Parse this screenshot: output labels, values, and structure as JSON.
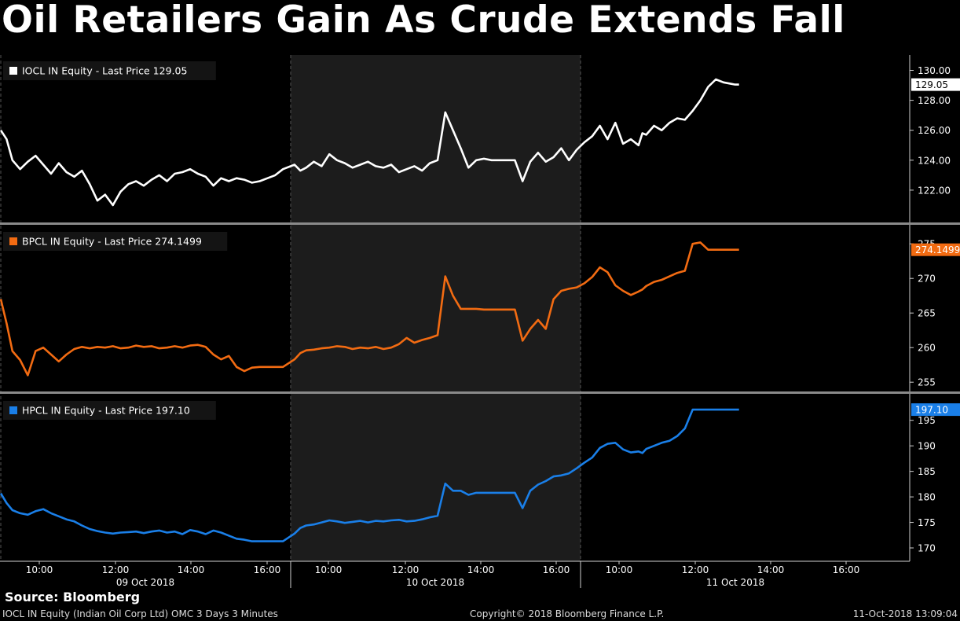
{
  "title": "Oil Retailers Gain As Crude Extends Fall",
  "source": "Source: Bloomberg",
  "footer": {
    "left": "IOCL IN Equity (Indian Oil Corp Ltd) OMC 3 Days 3 Minutes",
    "center": "Copyright© 2018 Bloomberg Finance L.P.",
    "right": "11-Oct-2018 13:09:04"
  },
  "colors": {
    "background": "#000000",
    "shaded_day": "#1c1c1c",
    "panel_divider": "#8a8a8a",
    "iocl": "#ffffff",
    "bpcl": "#f26b12",
    "hpcl": "#1a7fe8"
  },
  "chart_data": {
    "type": "line",
    "x_unit": "hours since 09 Oct 2018 09:00 on trading-session axis",
    "x_tick_labels": [
      "10:00",
      "12:00",
      "14:00",
      "16:00",
      "10:00",
      "12:00",
      "14:00",
      "16:00",
      "10:00",
      "12:00",
      "14:00",
      "16:00"
    ],
    "day_labels": [
      "09 Oct 2018",
      "10 Oct 2018",
      "11 Oct 2018"
    ],
    "panels": [
      {
        "name": "IOCL IN Equity",
        "legend": "IOCL IN Equity - Last Price 129.05",
        "last_price_label": "129.05",
        "color": "#ffffff",
        "ylim": [
          120,
          130.5
        ],
        "y_ticks": [
          "130.00",
          "128.00",
          "126.00",
          "124.00",
          "122.00"
        ],
        "x": [
          9.0,
          9.15,
          9.3,
          9.5,
          9.7,
          9.9,
          10.1,
          10.3,
          10.5,
          10.7,
          10.9,
          11.1,
          11.3,
          11.5,
          11.7,
          11.9,
          12.1,
          12.3,
          12.5,
          12.7,
          12.9,
          13.1,
          13.3,
          13.5,
          13.7,
          13.9,
          14.1,
          14.3,
          14.5,
          14.7,
          14.9,
          15.1,
          15.3,
          15.5,
          15.7,
          15.9,
          16.1,
          16.3,
          16.6,
          16.75,
          16.9,
          17.1,
          17.3,
          17.5,
          17.7,
          17.9,
          18.1,
          18.3,
          18.5,
          18.7,
          18.9,
          19.1,
          19.3,
          19.5,
          19.7,
          19.9,
          20.1,
          20.3,
          20.5,
          20.7,
          20.9,
          21.1,
          21.3,
          21.5,
          21.7,
          21.9,
          22.1,
          22.3,
          22.5,
          22.7,
          22.9,
          23.1,
          23.3,
          23.5,
          23.7,
          23.9,
          24.1,
          24.3,
          24.5,
          24.7,
          24.9,
          25.1,
          25.3,
          25.5,
          25.6,
          25.7,
          25.9,
          26.1,
          26.3,
          26.5,
          26.7,
          26.9,
          27.1,
          27.3,
          27.5,
          27.7,
          27.9,
          28.0,
          28.1
        ],
        "values": [
          126.0,
          125.4,
          124.0,
          123.4,
          123.9,
          124.3,
          123.7,
          123.1,
          123.8,
          123.2,
          122.9,
          123.3,
          122.4,
          121.3,
          121.7,
          121.0,
          121.9,
          122.4,
          122.6,
          122.3,
          122.7,
          123.0,
          122.6,
          123.1,
          123.2,
          123.4,
          123.1,
          122.9,
          122.3,
          122.8,
          122.6,
          122.8,
          122.7,
          122.5,
          122.6,
          122.8,
          123.0,
          123.4,
          123.7,
          123.3,
          123.5,
          123.9,
          123.6,
          124.4,
          124.0,
          123.8,
          123.5,
          123.7,
          123.9,
          123.6,
          123.5,
          123.7,
          123.2,
          123.4,
          123.6,
          123.3,
          123.8,
          124.0,
          127.2,
          126.0,
          124.8,
          123.5,
          124.0,
          124.1,
          124.0,
          124.0,
          124.0,
          124.0,
          122.6,
          123.9,
          124.5,
          123.9,
          124.2,
          124.8,
          124.0,
          124.7,
          125.2,
          125.6,
          126.3,
          125.4,
          126.5,
          125.1,
          125.4,
          125.0,
          125.8,
          125.7,
          126.3,
          126.0,
          126.5,
          126.8,
          126.7,
          127.3,
          128.0,
          128.9,
          129.4,
          129.2,
          129.1,
          129.05,
          129.05
        ]
      },
      {
        "name": "BPCL IN Equity",
        "legend": "BPCL IN Equity - Last Price 274.1499",
        "last_price_label": "274.1499",
        "color": "#f26b12",
        "ylim": [
          254,
          276.5
        ],
        "y_ticks": [
          "275",
          "270",
          "265",
          "260",
          "255"
        ],
        "x": [
          9.0,
          9.15,
          9.3,
          9.5,
          9.7,
          9.9,
          10.1,
          10.3,
          10.5,
          10.7,
          10.9,
          11.1,
          11.3,
          11.5,
          11.7,
          11.9,
          12.1,
          12.3,
          12.5,
          12.7,
          12.9,
          13.1,
          13.3,
          13.5,
          13.7,
          13.9,
          14.1,
          14.3,
          14.5,
          14.7,
          14.9,
          15.1,
          15.3,
          15.5,
          15.7,
          15.9,
          16.1,
          16.3,
          16.6,
          16.75,
          16.9,
          17.1,
          17.3,
          17.5,
          17.7,
          17.9,
          18.1,
          18.3,
          18.5,
          18.7,
          18.9,
          19.1,
          19.3,
          19.5,
          19.7,
          19.9,
          20.1,
          20.3,
          20.5,
          20.7,
          20.9,
          21.1,
          21.3,
          21.5,
          21.7,
          21.9,
          22.1,
          22.3,
          22.5,
          22.7,
          22.9,
          23.1,
          23.3,
          23.5,
          23.7,
          23.9,
          24.1,
          24.3,
          24.5,
          24.7,
          24.9,
          25.1,
          25.3,
          25.5,
          25.6,
          25.7,
          25.9,
          26.1,
          26.3,
          26.5,
          26.7,
          26.9,
          27.1,
          27.3,
          27.5,
          27.7,
          27.9,
          28.0,
          28.1
        ],
        "values": [
          267.0,
          263.5,
          259.5,
          258.2,
          256.0,
          259.5,
          260.0,
          259.0,
          258.0,
          259.0,
          259.8,
          260.1,
          259.9,
          260.1,
          260.0,
          260.2,
          259.9,
          260.0,
          260.3,
          260.1,
          260.2,
          259.9,
          260.0,
          260.2,
          260.0,
          260.3,
          260.4,
          260.1,
          259.0,
          258.3,
          258.8,
          257.2,
          256.6,
          257.1,
          257.2,
          257.2,
          257.2,
          257.2,
          258.3,
          259.2,
          259.6,
          259.7,
          259.9,
          260.0,
          260.2,
          260.1,
          259.8,
          260.0,
          259.9,
          260.1,
          259.8,
          260.0,
          260.5,
          261.4,
          260.7,
          261.1,
          261.4,
          261.8,
          270.3,
          267.5,
          265.6,
          265.6,
          265.6,
          265.5,
          265.5,
          265.5,
          265.5,
          265.5,
          261.0,
          262.7,
          264.0,
          262.7,
          267.0,
          268.2,
          268.5,
          268.7,
          269.3,
          270.2,
          271.6,
          270.9,
          269.0,
          268.2,
          267.6,
          268.1,
          268.4,
          268.9,
          269.5,
          269.8,
          270.3,
          270.8,
          271.1,
          275.0,
          275.2,
          274.1499,
          274.1499,
          274.1499,
          274.1499,
          274.1499,
          274.1499
        ]
      },
      {
        "name": "HPCL IN Equity",
        "legend": "HPCL IN Equity - Last Price 197.10",
        "last_price_label": "197.10",
        "color": "#1a7fe8",
        "ylim": [
          168,
          198.5
        ],
        "y_ticks": [
          "195",
          "190",
          "185",
          "180",
          "175",
          "170"
        ],
        "x": [
          9.0,
          9.15,
          9.3,
          9.5,
          9.7,
          9.9,
          10.1,
          10.3,
          10.5,
          10.7,
          10.9,
          11.1,
          11.3,
          11.5,
          11.7,
          11.9,
          12.1,
          12.3,
          12.5,
          12.7,
          12.9,
          13.1,
          13.3,
          13.5,
          13.7,
          13.9,
          14.1,
          14.3,
          14.5,
          14.7,
          14.9,
          15.1,
          15.3,
          15.5,
          15.7,
          15.9,
          16.1,
          16.3,
          16.6,
          16.75,
          16.9,
          17.1,
          17.3,
          17.5,
          17.7,
          17.9,
          18.1,
          18.3,
          18.5,
          18.7,
          18.9,
          19.1,
          19.3,
          19.5,
          19.7,
          19.9,
          20.1,
          20.3,
          20.5,
          20.7,
          20.9,
          21.1,
          21.3,
          21.5,
          21.7,
          21.9,
          22.1,
          22.3,
          22.5,
          22.7,
          22.9,
          23.1,
          23.3,
          23.5,
          23.7,
          23.9,
          24.1,
          24.3,
          24.5,
          24.7,
          24.9,
          25.1,
          25.3,
          25.5,
          25.6,
          25.7,
          25.9,
          26.1,
          26.3,
          26.5,
          26.7,
          26.9,
          27.1,
          27.3,
          27.5,
          27.7,
          27.9,
          28.0,
          28.1
        ],
        "values": [
          180.7,
          178.8,
          177.4,
          176.8,
          176.5,
          177.2,
          177.6,
          176.8,
          176.2,
          175.6,
          175.2,
          174.4,
          173.7,
          173.3,
          173.0,
          172.8,
          173.0,
          173.1,
          173.2,
          172.9,
          173.2,
          173.4,
          173.0,
          173.2,
          172.7,
          173.5,
          173.2,
          172.7,
          173.4,
          173.0,
          172.4,
          171.8,
          171.6,
          171.3,
          171.3,
          171.3,
          171.3,
          171.3,
          172.8,
          173.9,
          174.4,
          174.6,
          175.0,
          175.4,
          175.2,
          174.9,
          175.1,
          175.3,
          175.0,
          175.3,
          175.2,
          175.4,
          175.5,
          175.2,
          175.3,
          175.6,
          176.0,
          176.3,
          182.6,
          181.2,
          181.2,
          180.4,
          180.8,
          180.8,
          180.8,
          180.8,
          180.8,
          180.8,
          177.8,
          181.2,
          182.4,
          183.1,
          184.0,
          184.2,
          184.6,
          185.6,
          186.7,
          187.7,
          189.6,
          190.4,
          190.6,
          189.3,
          188.7,
          188.9,
          188.6,
          189.4,
          190.0,
          190.6,
          191.0,
          191.9,
          193.4,
          197.1,
          197.1,
          197.1,
          197.1,
          197.1,
          197.1,
          197.1,
          197.1
        ]
      }
    ]
  }
}
